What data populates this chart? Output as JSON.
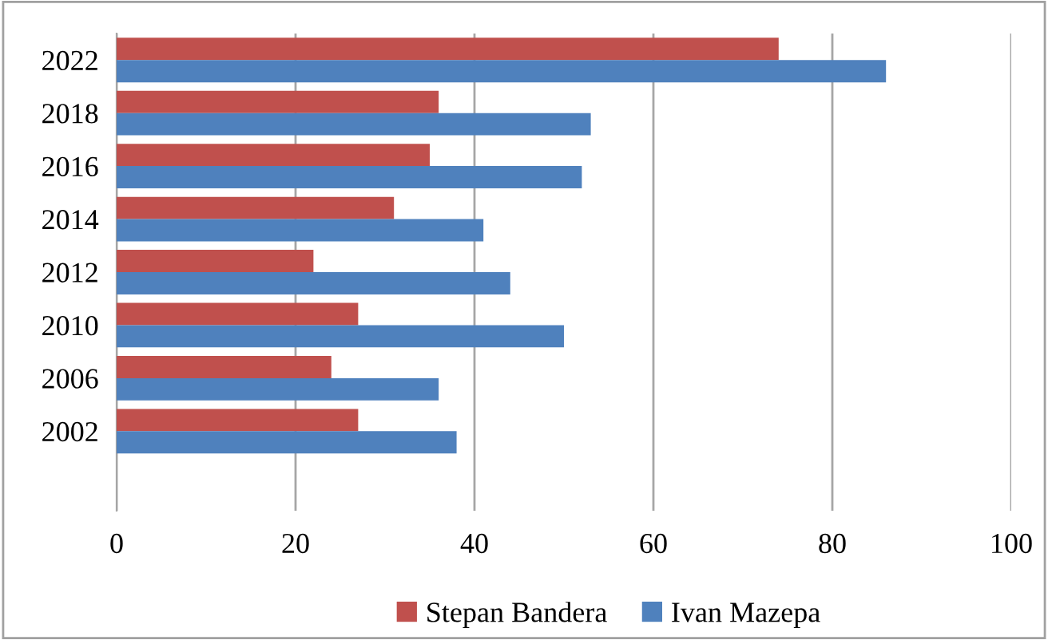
{
  "chart_data": {
    "type": "bar",
    "orientation": "horizontal",
    "categories": [
      "2022",
      "2018",
      "2016",
      "2014",
      "2012",
      "2010",
      "2006",
      "2002",
      null
    ],
    "series": [
      {
        "name": "Stepan Bandera",
        "color": "#c0504d",
        "values": [
          74,
          36,
          35,
          31,
          22,
          27,
          24,
          27,
          null
        ]
      },
      {
        "name": "Ivan Mazepa",
        "color": "#4f81bd",
        "values": [
          86,
          53,
          52,
          41,
          44,
          50,
          36,
          38,
          null
        ]
      }
    ],
    "xlim": [
      0,
      100
    ],
    "xticks": [
      0,
      20,
      40,
      60,
      80,
      100
    ],
    "grid": "x",
    "legend": "bottom"
  }
}
